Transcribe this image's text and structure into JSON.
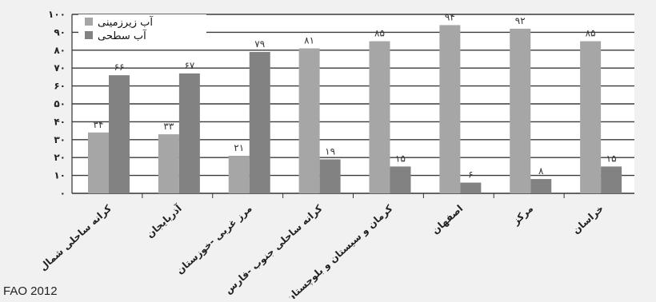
{
  "chart_data": {
    "type": "bar",
    "categories": [
      "کرانه ساحلی شمال",
      "آذربایجان",
      "مرز غربی -خوزستان",
      "کرانه ساحلی جنوب -فارس",
      "کرمان و سیستان و بلوچستان",
      "اصفهان",
      "مرکز",
      "خراسان"
    ],
    "series": [
      {
        "name": "آب زیرزمینی",
        "values": [
          34,
          33,
          21,
          81,
          85,
          94,
          92,
          85
        ],
        "labels": [
          "۳۴",
          "۳۳",
          "۲۱",
          "۸۱",
          "۸۵",
          "۹۴",
          "۹۲",
          "۸۵"
        ],
        "color": "#a6a6a6"
      },
      {
        "name": "آب سطحی",
        "values": [
          66,
          67,
          79,
          19,
          15,
          6,
          8,
          15
        ],
        "labels": [
          "۶۶",
          "۶۷",
          "۷۹",
          "۱۹",
          "۱۵",
          "۶",
          "۸",
          "۱۵"
        ],
        "color": "#828282"
      }
    ],
    "ylim": [
      0,
      100
    ],
    "yticks": [
      0,
      10,
      20,
      30,
      40,
      50,
      60,
      70,
      80,
      90,
      100
    ],
    "ytick_labels": [
      "۰",
      "۱۰",
      "۲۰",
      "۳۰",
      "۴۰",
      "۵۰",
      "۶۰",
      "۷۰",
      "۸۰",
      "۹۰",
      "۱۰۰"
    ],
    "grid": true,
    "legend_position": "top-left"
  },
  "source": "FAO 2012"
}
